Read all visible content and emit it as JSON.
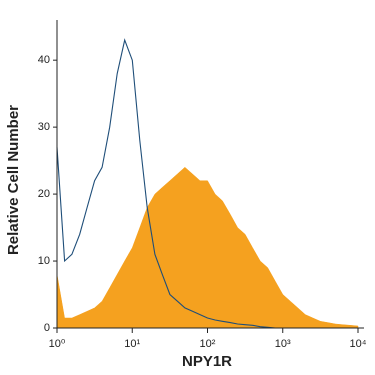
{
  "chart_data": {
    "type": "histogram-overlay",
    "x_label": "NPY1R",
    "y_label": "Relative Cell Number",
    "x_log": true,
    "x": [
      1,
      1.26,
      1.58,
      2,
      2.51,
      3.16,
      3.98,
      5.01,
      6.31,
      7.94,
      10,
      12.6,
      15.8,
      20,
      25.1,
      31.6,
      39.8,
      50.1,
      63.1,
      79.4,
      100,
      126,
      158,
      200,
      251,
      316,
      398,
      501,
      631,
      794,
      1000,
      1259,
      1585,
      1995,
      2512,
      3162,
      3981,
      5012,
      6310,
      7943,
      10000
    ],
    "series": [
      {
        "color": "#f5a11f",
        "fill": true,
        "values": [
          8,
          1.5,
          1.5,
          2,
          2.5,
          3,
          4,
          6,
          8,
          10,
          12,
          15,
          18,
          20,
          21,
          22,
          23,
          24,
          23,
          22,
          22,
          20,
          19,
          17,
          15,
          14,
          12,
          10,
          9,
          7,
          5,
          4,
          3,
          2,
          1.5,
          1,
          0.8,
          0.6,
          0.5,
          0.4,
          0.3
        ]
      },
      {
        "color": "#1f4e79",
        "fill": false,
        "values": [
          27,
          10,
          11,
          14,
          18,
          22,
          24,
          30,
          38,
          43,
          40,
          28,
          18,
          11,
          8,
          5,
          4,
          3,
          2.5,
          2,
          1.5,
          1.2,
          1,
          0.8,
          0.6,
          0.5,
          0.4,
          0.2,
          0.1,
          0,
          0,
          0,
          0,
          0,
          0,
          0,
          0,
          0,
          0,
          0,
          0
        ]
      }
    ],
    "xlim": [
      1,
      10000
    ],
    "xticks": [
      {
        "value": 1,
        "label": "10⁰"
      },
      {
        "value": 10,
        "label": "10¹"
      },
      {
        "value": 100,
        "label": "10²"
      },
      {
        "value": 1000,
        "label": "10³"
      },
      {
        "value": 10000,
        "label": "10⁴"
      }
    ],
    "ylim": [
      0,
      46
    ],
    "yticks": [
      0,
      10,
      20,
      30,
      40
    ]
  }
}
